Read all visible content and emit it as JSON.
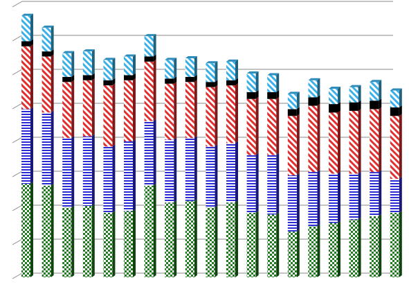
{
  "chart_data": {
    "type": "bar",
    "stacked": true,
    "three_d": true,
    "title": "",
    "xlabel": "",
    "ylabel": "",
    "ylim": [
      0,
      8
    ],
    "grid": true,
    "legend": "none",
    "categories": [
      "",
      "",
      "",
      "",
      "",
      "",
      "",
      "",
      "",
      "",
      "",
      "",
      "",
      "",
      "",
      "",
      "",
      "",
      ""
    ],
    "series": [
      {
        "color": "#1e7b1e",
        "pattern": "checker",
        "values": [
          2.75,
          2.7,
          2.05,
          2.1,
          1.9,
          1.95,
          2.7,
          2.2,
          2.25,
          2.05,
          2.2,
          1.9,
          1.85,
          1.35,
          1.5,
          1.6,
          1.7,
          1.8,
          1.9
        ]
      },
      {
        "color": "#2b2bd6",
        "pattern": "horizontal-stripes",
        "values": [
          2.2,
          2.15,
          2.05,
          2.05,
          1.95,
          2.05,
          1.9,
          1.85,
          1.85,
          1.8,
          1.75,
          1.7,
          1.75,
          1.65,
          1.6,
          1.45,
          1.35,
          1.3,
          1.0
        ]
      },
      {
        "color": "#e03030",
        "pattern": "diagonal-stripes",
        "values": [
          1.85,
          1.65,
          1.65,
          1.65,
          1.8,
          1.8,
          1.75,
          1.65,
          1.65,
          1.75,
          1.7,
          1.65,
          1.65,
          1.75,
          1.95,
          1.8,
          1.85,
          1.85,
          1.85
        ]
      },
      {
        "color": "#000000",
        "pattern": "solid",
        "values": [
          0.15,
          0.15,
          0.15,
          0.15,
          0.15,
          0.15,
          0.15,
          0.15,
          0.15,
          0.15,
          0.15,
          0.2,
          0.2,
          0.2,
          0.25,
          0.25,
          0.25,
          0.25,
          0.25
        ]
      },
      {
        "color": "#3ab0e8",
        "pattern": "diagonal-stripes",
        "values": [
          0.75,
          0.7,
          0.7,
          0.7,
          0.6,
          0.55,
          0.6,
          0.55,
          0.55,
          0.55,
          0.55,
          0.55,
          0.5,
          0.45,
          0.5,
          0.45,
          0.45,
          0.55,
          0.5
        ]
      }
    ]
  }
}
